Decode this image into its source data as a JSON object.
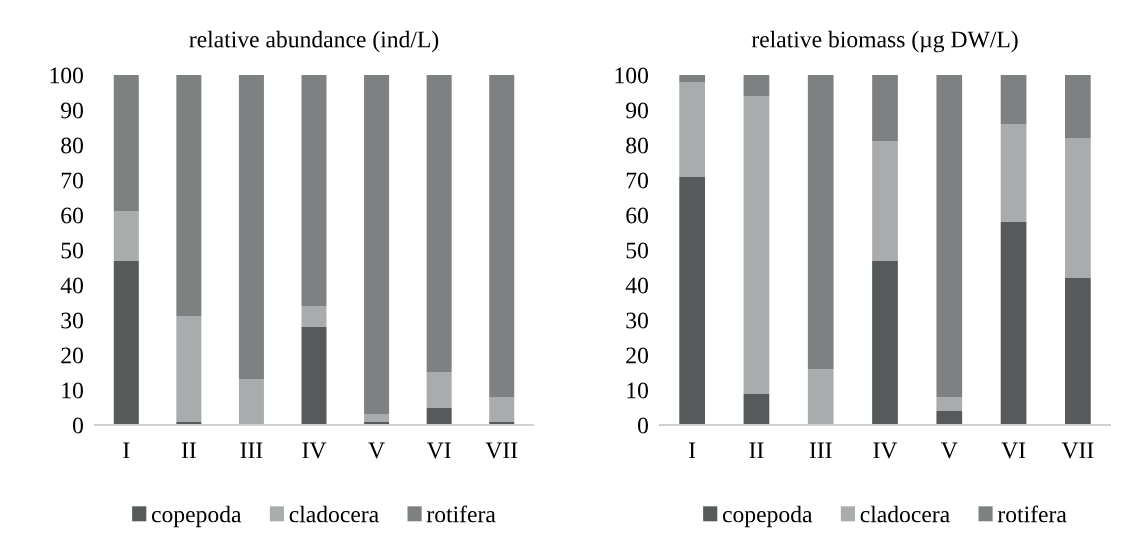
{
  "chart_data": [
    {
      "type": "bar",
      "title": "relative abundance (ind/L)",
      "stacked": true,
      "categories": [
        "I",
        "II",
        "III",
        "IV",
        "V",
        "VI",
        "VII"
      ],
      "series": [
        {
          "name": "copepoda",
          "color": "#565a5b",
          "values": [
            47,
            1,
            0,
            28,
            1,
            5,
            1
          ]
        },
        {
          "name": "cladocera",
          "color": "#a9acad",
          "values": [
            14,
            30,
            13,
            6,
            2,
            10,
            7
          ]
        },
        {
          "name": "rotifera",
          "color": "#7e8182",
          "values": [
            39,
            69,
            87,
            66,
            97,
            85,
            92
          ]
        }
      ],
      "ylim": [
        0,
        100
      ],
      "yticks": [
        0,
        10,
        20,
        30,
        40,
        50,
        60,
        70,
        80,
        90,
        100
      ],
      "grid": false,
      "legend": "bottom"
    },
    {
      "type": "bar",
      "title": "relative biomass (µg DW/L)",
      "stacked": true,
      "categories": [
        "I",
        "II",
        "III",
        "IV",
        "V",
        "VI",
        "VII"
      ],
      "series": [
        {
          "name": "copepoda",
          "color": "#565a5b",
          "values": [
            71,
            9,
            0,
            47,
            4,
            58,
            42
          ]
        },
        {
          "name": "cladocera",
          "color": "#a9acad",
          "values": [
            27,
            85,
            16,
            34,
            4,
            28,
            40
          ]
        },
        {
          "name": "rotifera",
          "color": "#7e8182",
          "values": [
            2,
            6,
            84,
            19,
            92,
            14,
            18
          ]
        }
      ],
      "ylim": [
        0,
        100
      ],
      "yticks": [
        0,
        10,
        20,
        30,
        40,
        50,
        60,
        70,
        80,
        90,
        100
      ],
      "grid": false,
      "legend": "bottom"
    }
  ]
}
